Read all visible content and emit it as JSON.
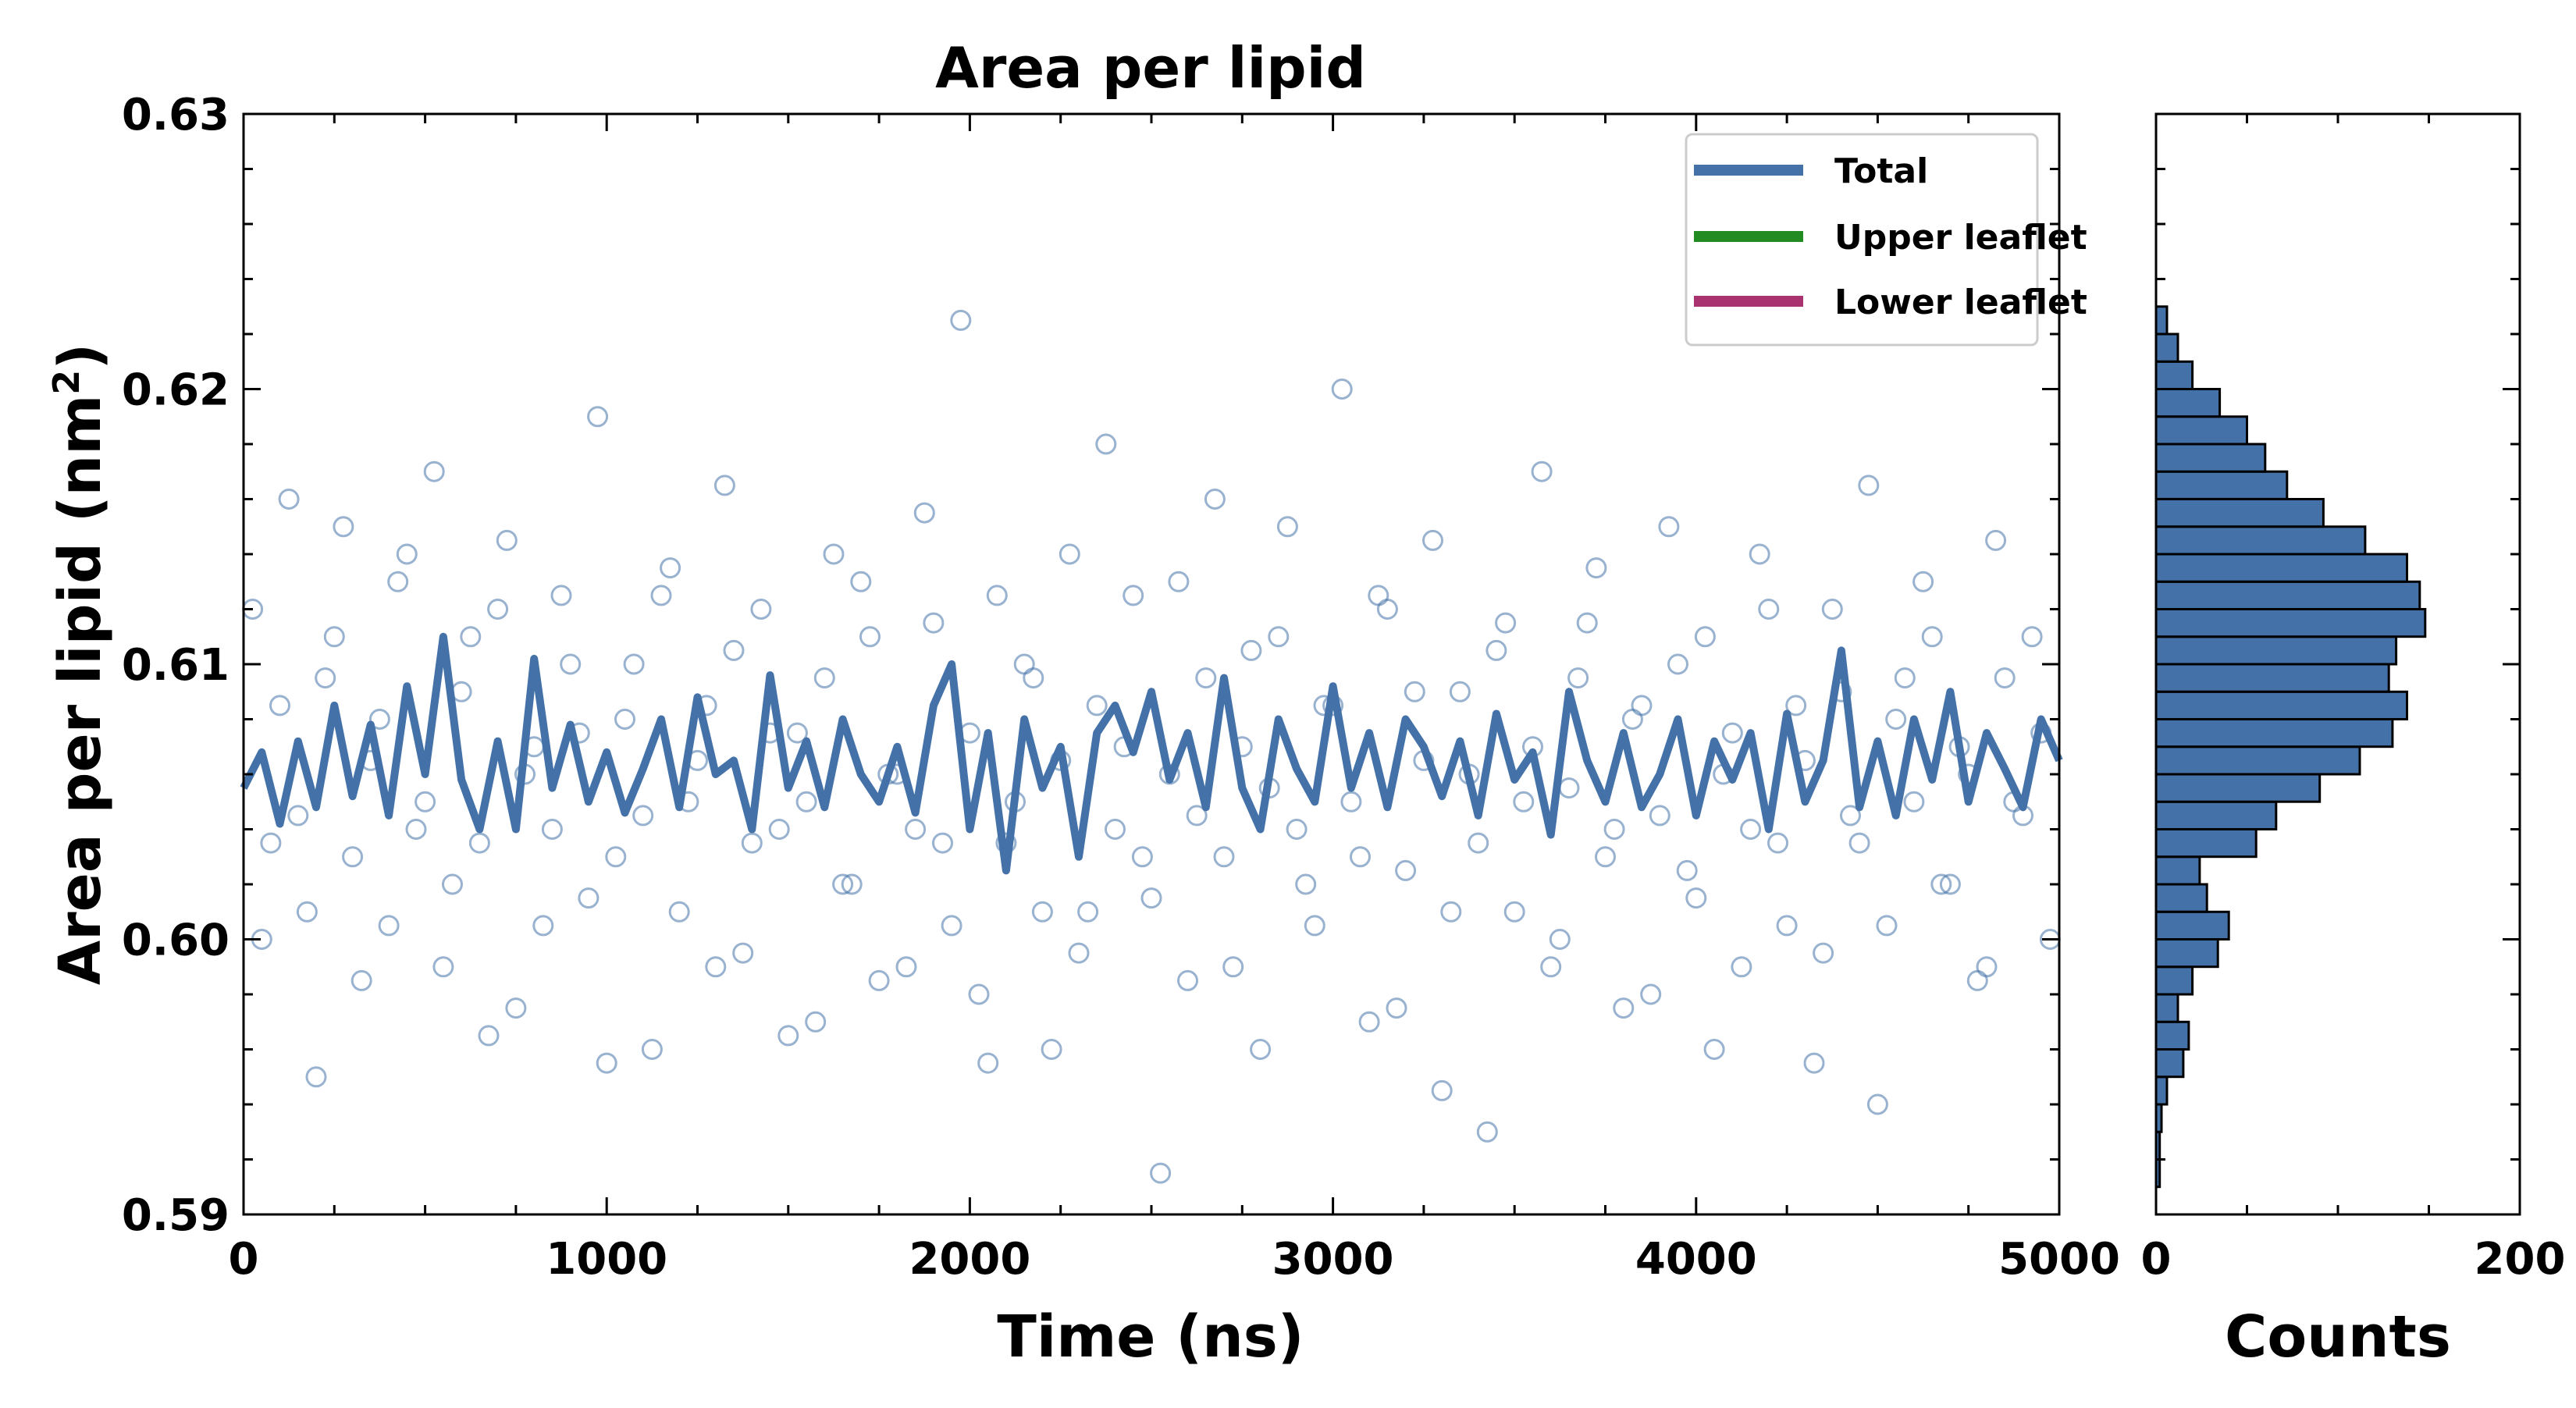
{
  "chart_data": [
    {
      "type": "line",
      "title": "Area per lipid",
      "xlabel": "Time (ns)",
      "ylabel": "Area per lipid (nm²)",
      "ylabel_main": "Area per lipid (nm",
      "ylabel_sup": "2",
      "ylabel_close": ")",
      "xlim": [
        0,
        5000
      ],
      "ylim": [
        0.59,
        0.63
      ],
      "x_ticks": [
        0,
        1000,
        2000,
        3000,
        4000,
        5000
      ],
      "x_tick_labels": [
        "0",
        "1000",
        "2000",
        "3000",
        "4000",
        "5000"
      ],
      "y_ticks": [
        0.59,
        0.6,
        0.61,
        0.62,
        0.63
      ],
      "y_tick_labels": [
        "0.59",
        "0.60",
        "0.61",
        "0.62",
        "0.63"
      ],
      "grid": false,
      "legend_position": "top-right",
      "legend": [
        {
          "label": "Total",
          "color": "#4472a8"
        },
        {
          "label": "Upper leaflet",
          "color": "#228b22"
        },
        {
          "label": "Lower leaflet",
          "color": "#a8336f"
        }
      ],
      "series": [
        {
          "name": "Total",
          "kind": "line",
          "color": "#4472a8",
          "x": [
            0,
            50,
            100,
            150,
            200,
            250,
            300,
            350,
            400,
            450,
            500,
            550,
            600,
            650,
            700,
            750,
            800,
            850,
            900,
            950,
            1000,
            1050,
            1100,
            1150,
            1200,
            1250,
            1300,
            1350,
            1400,
            1450,
            1500,
            1550,
            1600,
            1650,
            1700,
            1750,
            1800,
            1850,
            1900,
            1950,
            2000,
            2050,
            2100,
            2150,
            2200,
            2250,
            2300,
            2350,
            2400,
            2450,
            2500,
            2550,
            2600,
            2650,
            2700,
            2750,
            2800,
            2850,
            2900,
            2950,
            3000,
            3050,
            3100,
            3150,
            3200,
            3250,
            3300,
            3350,
            3400,
            3450,
            3500,
            3550,
            3600,
            3650,
            3700,
            3750,
            3800,
            3850,
            3900,
            3950,
            4000,
            4050,
            4100,
            4150,
            4200,
            4250,
            4300,
            4350,
            4400,
            4450,
            4500,
            4550,
            4600,
            4650,
            4700,
            4750,
            4800,
            4850,
            4900,
            4950,
            5000
          ],
          "y": [
            0.6055,
            0.6068,
            0.6042,
            0.6072,
            0.6048,
            0.6085,
            0.6052,
            0.6078,
            0.6045,
            0.6092,
            0.606,
            0.611,
            0.6058,
            0.604,
            0.6072,
            0.604,
            0.6102,
            0.6055,
            0.6078,
            0.605,
            0.6068,
            0.6046,
            0.6062,
            0.608,
            0.6048,
            0.6088,
            0.606,
            0.6065,
            0.604,
            0.6096,
            0.6055,
            0.6072,
            0.6048,
            0.608,
            0.606,
            0.605,
            0.607,
            0.6046,
            0.6085,
            0.61,
            0.604,
            0.6075,
            0.6025,
            0.608,
            0.6055,
            0.607,
            0.603,
            0.6075,
            0.6085,
            0.6068,
            0.609,
            0.6058,
            0.6075,
            0.6048,
            0.6095,
            0.6055,
            0.604,
            0.608,
            0.6062,
            0.605,
            0.6092,
            0.6055,
            0.6075,
            0.6048,
            0.608,
            0.607,
            0.6052,
            0.6072,
            0.6045,
            0.6082,
            0.6058,
            0.6068,
            0.6038,
            0.609,
            0.6065,
            0.605,
            0.6075,
            0.6048,
            0.606,
            0.608,
            0.6045,
            0.6072,
            0.6058,
            0.6075,
            0.604,
            0.6082,
            0.605,
            0.6065,
            0.6105,
            0.6048,
            0.6072,
            0.6045,
            0.608,
            0.6058,
            0.609,
            0.605,
            0.6075,
            0.6062,
            0.6048,
            0.608,
            0.6065
          ]
        },
        {
          "name": "Upper leaflet",
          "kind": "scatter",
          "color": "#4472a8",
          "x": [
            25,
            75,
            125,
            175,
            225,
            275,
            325,
            375,
            425,
            475,
            525,
            575,
            625,
            675,
            725,
            775,
            825,
            875,
            925,
            975,
            1025,
            1075,
            1125,
            1175,
            1225,
            1275,
            1325,
            1375,
            1425,
            1475,
            1525,
            1575,
            1625,
            1675,
            1725,
            1775,
            1825,
            1875,
            1925,
            1975,
            2025,
            2075,
            2125,
            2175,
            2225,
            2275,
            2325,
            2375,
            2425,
            2475,
            2525,
            2575,
            2625,
            2675,
            2725,
            2775,
            2825,
            2875,
            2925,
            2975,
            3025,
            3075,
            3125,
            3175,
            3225,
            3275,
            3325,
            3375,
            3425,
            3475,
            3525,
            3575,
            3625,
            3675,
            3725,
            3775,
            3825,
            3875,
            3925,
            3975,
            4025,
            4075,
            4125,
            4175,
            4225,
            4275,
            4325,
            4375,
            4425,
            4475,
            4525,
            4575,
            4625,
            4675,
            4725,
            4775,
            4825,
            4875,
            4925,
            4975
          ],
          "y": [
            0.612,
            0.6035,
            0.616,
            0.601,
            0.6095,
            0.615,
            0.5985,
            0.608,
            0.613,
            0.604,
            0.617,
            0.602,
            0.611,
            0.5965,
            0.6145,
            0.606,
            0.6005,
            0.6125,
            0.6075,
            0.619,
            0.603,
            0.61,
            0.596,
            0.6135,
            0.605,
            0.6085,
            0.6165,
            0.5995,
            0.612,
            0.604,
            0.6075,
            0.597,
            0.614,
            0.602,
            0.611,
            0.606,
            0.599,
            0.6155,
            0.6035,
            0.6225,
            0.598,
            0.6125,
            0.605,
            0.6095,
            0.596,
            0.614,
            0.601,
            0.618,
            0.607,
            0.603,
            0.5915,
            0.613,
            0.6045,
            0.616,
            0.599,
            0.6105,
            0.6055,
            0.615,
            0.602,
            0.6085,
            0.62,
            0.603,
            0.6125,
            0.5975,
            0.609,
            0.6145,
            0.601,
            0.606,
            0.593,
            0.6115,
            0.605,
            0.617,
            0.6,
            0.6095,
            0.6135,
            0.604,
            0.608,
            0.598,
            0.615,
            0.6025,
            0.611,
            0.606,
            0.599,
            0.614,
            0.6035,
            0.6085,
            0.5955,
            0.612,
            0.6045,
            0.6165,
            0.6005,
            0.6095,
            0.613,
            0.602,
            0.607,
            0.5985,
            0.6145,
            0.605,
            0.611,
            0.6
          ]
        },
        {
          "name": "Lower leaflet",
          "kind": "scatter",
          "color": "#4472a8",
          "x": [
            50,
            100,
            150,
            200,
            250,
            300,
            350,
            400,
            450,
            500,
            550,
            600,
            650,
            700,
            750,
            800,
            850,
            900,
            950,
            1000,
            1050,
            1100,
            1150,
            1200,
            1250,
            1300,
            1350,
            1400,
            1450,
            1500,
            1550,
            1600,
            1650,
            1700,
            1750,
            1800,
            1850,
            1900,
            1950,
            2000,
            2050,
            2100,
            2150,
            2200,
            2250,
            2300,
            2350,
            2400,
            2450,
            2500,
            2550,
            2600,
            2650,
            2700,
            2750,
            2800,
            2850,
            2900,
            2950,
            3000,
            3050,
            3100,
            3150,
            3200,
            3250,
            3300,
            3350,
            3400,
            3450,
            3500,
            3550,
            3600,
            3650,
            3700,
            3750,
            3800,
            3850,
            3900,
            3950,
            4000,
            4050,
            4100,
            4150,
            4200,
            4250,
            4300,
            4350,
            4400,
            4450,
            4500,
            4550,
            4600,
            4650,
            4700,
            4750,
            4800,
            4850,
            4900,
            4950
          ],
          "y": [
            0.6,
            0.6085,
            0.6045,
            0.595,
            0.611,
            0.603,
            0.6065,
            0.6005,
            0.614,
            0.605,
            0.599,
            0.609,
            0.6035,
            0.612,
            0.5975,
            0.607,
            0.604,
            0.61,
            0.6015,
            0.5955,
            0.608,
            0.6045,
            0.6125,
            0.601,
            0.6065,
            0.599,
            0.6105,
            0.6035,
            0.6075,
            0.5965,
            0.605,
            0.6095,
            0.602,
            0.613,
            0.5985,
            0.606,
            0.604,
            0.6115,
            0.6005,
            0.6075,
            0.5955,
            0.6035,
            0.61,
            0.601,
            0.6065,
            0.5995,
            0.6085,
            0.604,
            0.6125,
            0.6015,
            0.606,
            0.5985,
            0.6095,
            0.603,
            0.607,
            0.596,
            0.611,
            0.604,
            0.6005,
            0.6085,
            0.605,
            0.597,
            0.612,
            0.6025,
            0.6065,
            0.5945,
            0.609,
            0.6035,
            0.6105,
            0.601,
            0.607,
            0.599,
            0.6055,
            0.6115,
            0.603,
            0.5975,
            0.6085,
            0.6045,
            0.61,
            0.6015,
            0.596,
            0.6075,
            0.604,
            0.612,
            0.6005,
            0.6065,
            0.5995,
            0.609,
            0.6035,
            0.594,
            0.608,
            0.605,
            0.611,
            0.602,
            0.606,
            0.599,
            0.6095,
            0.6045,
            0.6075
          ]
        }
      ]
    },
    {
      "type": "bar",
      "orientation": "horizontal",
      "xlabel": "Counts",
      "xlim": [
        0,
        200
      ],
      "x_ticks": [
        0,
        200
      ],
      "x_tick_labels": [
        "0",
        "200"
      ],
      "ylim": [
        0.59,
        0.63
      ],
      "color": "#4472a8",
      "bins": [
        0.5915,
        0.5925,
        0.5935,
        0.5945,
        0.5955,
        0.5965,
        0.5975,
        0.5985,
        0.5995,
        0.6005,
        0.6015,
        0.6025,
        0.6035,
        0.6045,
        0.6055,
        0.6065,
        0.6075,
        0.6085,
        0.6095,
        0.6105,
        0.6115,
        0.6125,
        0.6135,
        0.6145,
        0.6155,
        0.6165,
        0.6175,
        0.6185,
        0.6195,
        0.6205,
        0.6215,
        0.6225
      ],
      "counts": [
        2,
        2,
        3,
        6,
        15,
        18,
        12,
        20,
        34,
        40,
        28,
        24,
        55,
        66,
        90,
        112,
        130,
        138,
        128,
        132,
        148,
        145,
        138,
        115,
        92,
        72,
        60,
        50,
        35,
        20,
        12,
        6
      ]
    }
  ]
}
